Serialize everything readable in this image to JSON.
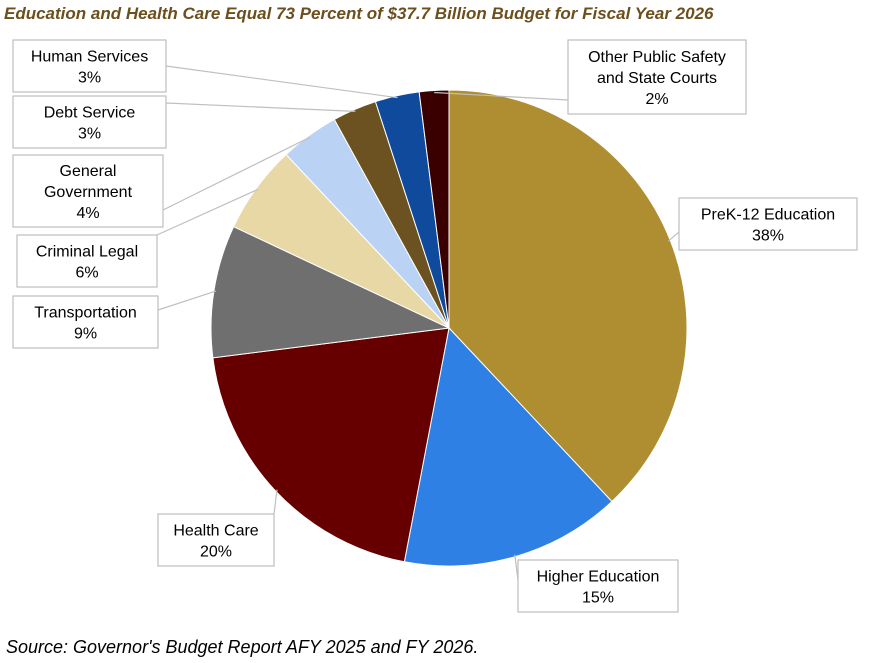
{
  "chart_data": {
    "type": "pie",
    "title": "Education and Health Care Equal 73 Percent of $37.7 Billion Budget for Fiscal Year 2026",
    "source": "Source: Governor's Budget Report AFY 2025 and FY 2026.",
    "slices": [
      {
        "key": "prek12",
        "label": [
          "PreK-12 Education",
          "38%"
        ],
        "value": 38,
        "color": "#ae8e31"
      },
      {
        "key": "higher-ed",
        "label": [
          "Higher Education",
          "15%"
        ],
        "value": 15,
        "color": "#2f80e4"
      },
      {
        "key": "health-care",
        "label": [
          "Health Care",
          "20%"
        ],
        "value": 20,
        "color": "#660000"
      },
      {
        "key": "transportation",
        "label": [
          "Transportation",
          "9%"
        ],
        "value": 9,
        "color": "#6f6f6f"
      },
      {
        "key": "criminal-legal",
        "label": [
          "Criminal Legal",
          "6%"
        ],
        "value": 6,
        "color": "#e8d8a6"
      },
      {
        "key": "general-government",
        "label": [
          "General",
          "Government",
          "4%"
        ],
        "value": 4,
        "color": "#bad3f4"
      },
      {
        "key": "debt-service",
        "label": [
          "Debt Service",
          "3%"
        ],
        "value": 3,
        "color": "#6b5220"
      },
      {
        "key": "human-services",
        "label": [
          "Human Services",
          "3%"
        ],
        "value": 3,
        "color": "#0f4a9c"
      },
      {
        "key": "public-safety",
        "label": [
          "Other Public Safety",
          "and State Courts",
          "2%"
        ],
        "value": 2,
        "color": "#3a0000"
      }
    ]
  }
}
